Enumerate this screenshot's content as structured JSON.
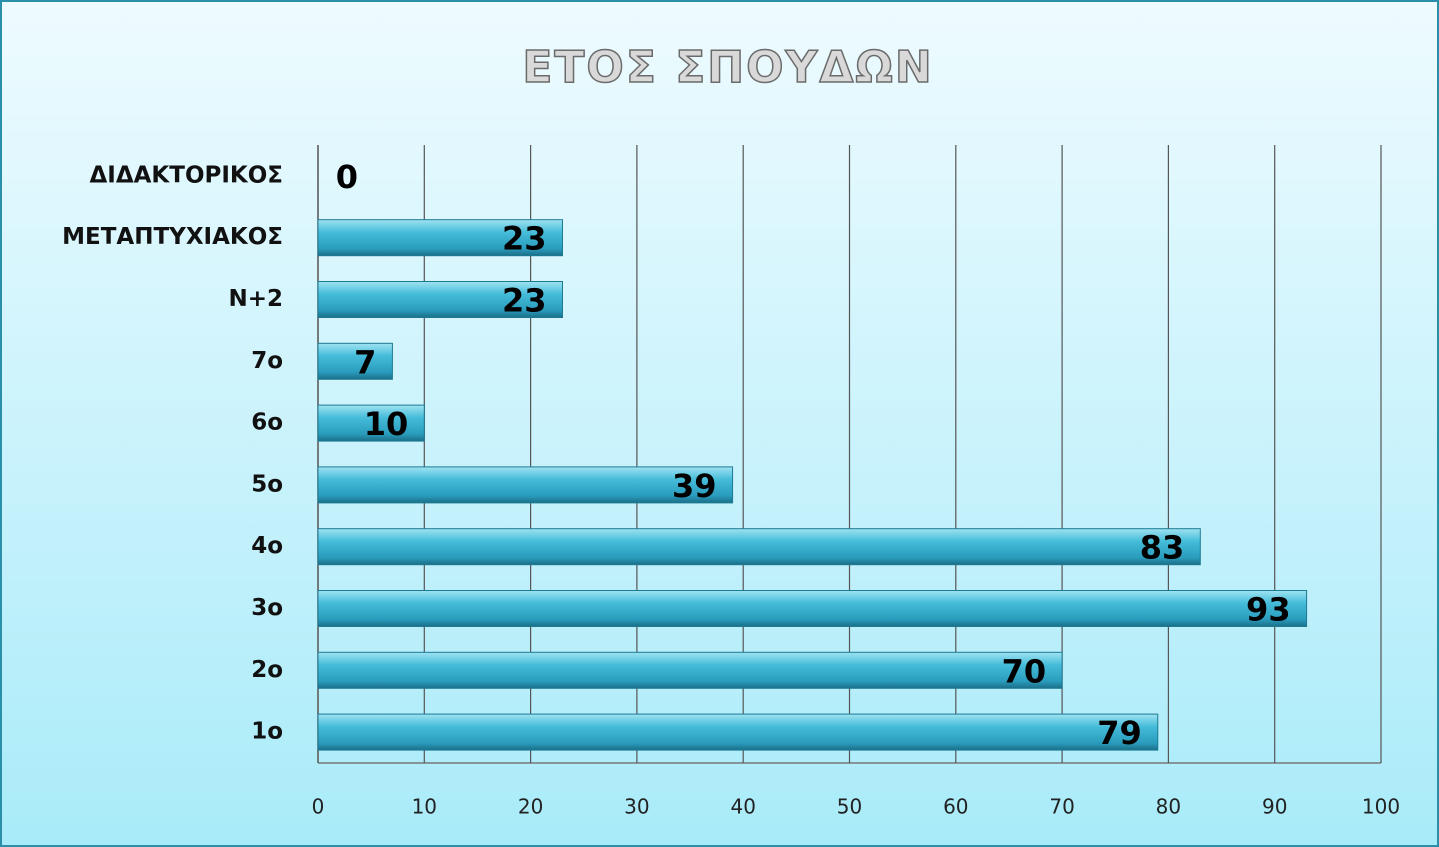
{
  "chart_data": {
    "type": "bar",
    "orientation": "horizontal",
    "title": "ΕΤΟΣ ΣΠΟΥΔΩΝ",
    "categories": [
      "1ο",
      "2ο",
      "3ο",
      "4ο",
      "5ο",
      "6ο",
      "7ο",
      "Ν+2",
      "ΜΕΤΑΠΤΥΧΙΑΚΟΣ",
      "ΔΙΔΑΚΤΟΡΙΚΟΣ"
    ],
    "values": [
      79,
      70,
      93,
      83,
      39,
      10,
      7,
      23,
      23,
      0
    ],
    "color": "#3bb6d6",
    "xlim": [
      0,
      100
    ],
    "xticks": [
      0,
      10,
      20,
      30,
      40,
      50,
      60,
      70,
      80,
      90,
      100
    ],
    "grid": true
  }
}
